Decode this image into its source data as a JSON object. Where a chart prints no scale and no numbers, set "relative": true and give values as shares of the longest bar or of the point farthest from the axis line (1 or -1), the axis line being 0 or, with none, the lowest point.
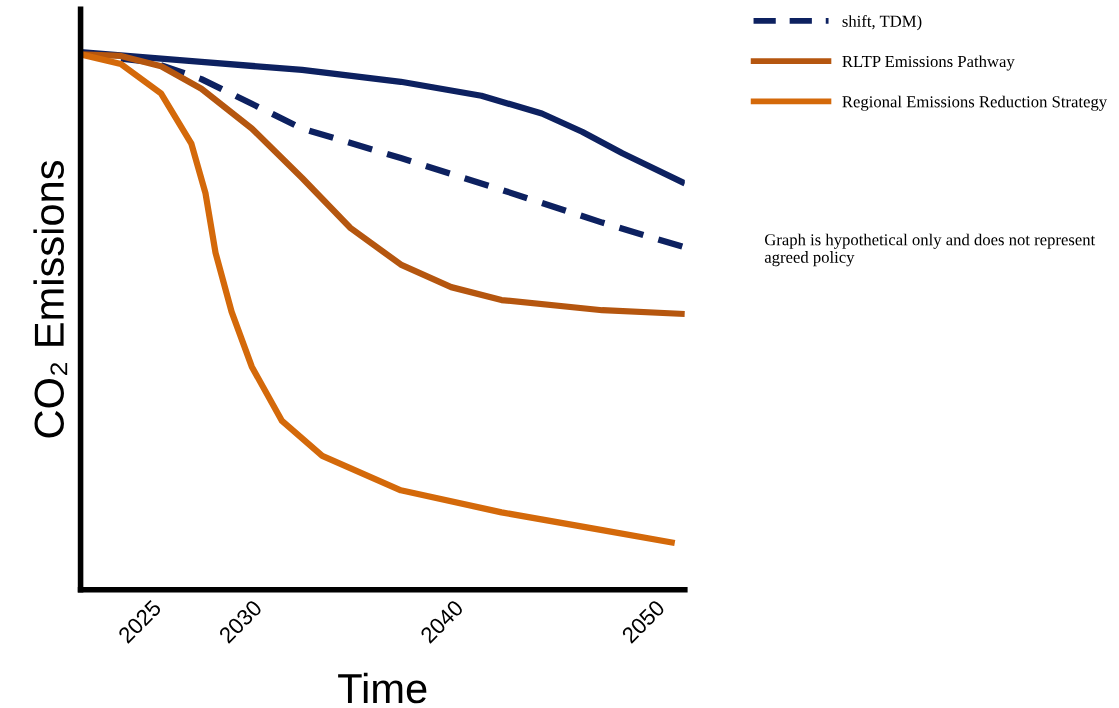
{
  "chart_data": {
    "type": "line",
    "relative": true,
    "xlabel": "Time",
    "ylabel": "CO₂ Emissions",
    "xlim": [
      2022,
      2052
    ],
    "xticks": [
      2025,
      2030,
      2040,
      2050
    ],
    "tick_labels": "x",
    "grid": false,
    "legend": "top right",
    "marker": "none",
    "annotations": [
      "Graph is hypothetical only and does not represent agreed policy"
    ],
    "series": [
      {
        "color": "#0d2160",
        "line_style": "solid",
        "x": [
          2022,
          2028,
          2033,
          2037.9,
          2041.9,
          2044.9,
          2046.9,
          2048.9,
          2052
        ],
        "values": [
          1,
          0.982,
          0.967,
          0.945,
          0.919,
          0.886,
          0.852,
          0.812,
          0.756
        ]
      },
      {
        "name": "shift, TDM)",
        "color": "#0d2160",
        "line_style": "dashed",
        "x": [
          2022,
          2025.5,
          2028,
          2030.5,
          2033,
          2037.9,
          2042.9,
          2047.9,
          2052
        ],
        "values": [
          0.996,
          0.982,
          0.95,
          0.904,
          0.858,
          0.803,
          0.744,
          0.683,
          0.637
        ]
      },
      {
        "name": "RLTP Emissions Pathway",
        "color": "#b5560f",
        "line_style": "solid",
        "x": [
          2022,
          2024,
          2026,
          2028,
          2030.5,
          2033,
          2035.4,
          2037.9,
          2040.4,
          2042.9,
          2047.9,
          2052
        ],
        "values": [
          0.996,
          0.993,
          0.974,
          0.932,
          0.858,
          0.766,
          0.673,
          0.605,
          0.563,
          0.539,
          0.52,
          0.513
        ]
      },
      {
        "name": "Regional Emissions Reduction Strategy",
        "color": "#d4690a",
        "line_style": "solid",
        "x": [
          2022,
          2024,
          2026,
          2027.5,
          2028.2,
          2028.7,
          2029.5,
          2030.5,
          2032,
          2034,
          2037.9,
          2042.9,
          2047.9,
          2051.5
        ],
        "values": [
          0.996,
          0.978,
          0.923,
          0.83,
          0.738,
          0.627,
          0.517,
          0.415,
          0.314,
          0.249,
          0.185,
          0.144,
          0.111,
          0.087
        ]
      }
    ]
  }
}
